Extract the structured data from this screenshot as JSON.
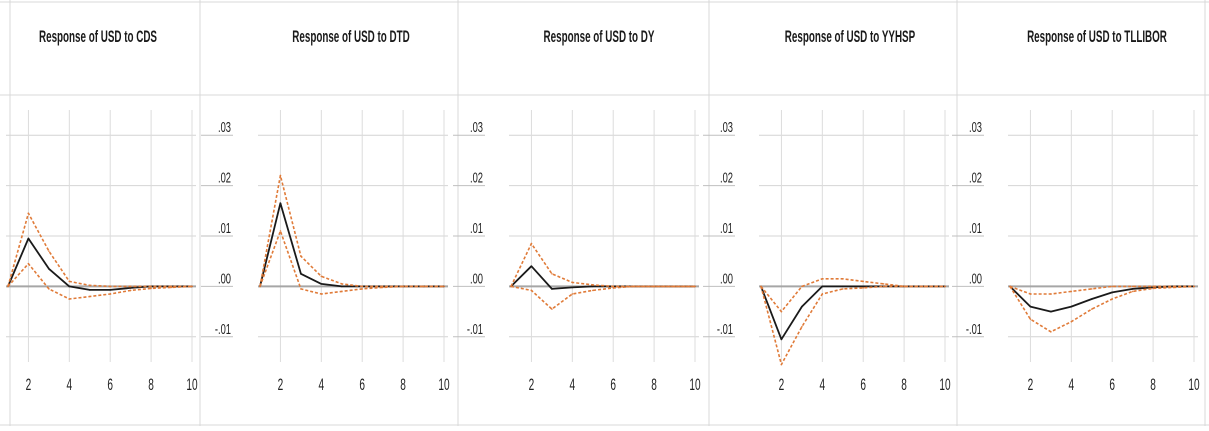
{
  "chart_data": [
    {
      "type": "line",
      "title": "Response of USD to CDS",
      "x": [
        1,
        2,
        3,
        4,
        5,
        6,
        7,
        8,
        9,
        10
      ],
      "xticks": [
        "2",
        "4",
        "6",
        "8",
        "10"
      ],
      "yticks": [],
      "ylim": [
        -0.015,
        0.035
      ],
      "series": [
        {
          "role": "response",
          "color": "#1a1a1a",
          "dash": false,
          "values": [
            0.0,
            0.0095,
            0.0035,
            0.0,
            -0.0007,
            -0.0007,
            -0.0003,
            0.0,
            0.0,
            0.0
          ]
        },
        {
          "role": "upper",
          "color": "#e07b39",
          "dash": true,
          "values": [
            0.0,
            0.0145,
            0.007,
            0.001,
            0.0002,
            0.0,
            0.0,
            0.0,
            0.0,
            0.0
          ]
        },
        {
          "role": "lower",
          "color": "#e07b39",
          "dash": true,
          "values": [
            0.0,
            0.0045,
            -0.0005,
            -0.0025,
            -0.002,
            -0.0015,
            -0.0008,
            -0.0004,
            -0.0002,
            0.0
          ]
        }
      ]
    },
    {
      "type": "line",
      "title": "Response of USD to DTD",
      "x": [
        1,
        2,
        3,
        4,
        5,
        6,
        7,
        8,
        9,
        10
      ],
      "xticks": [
        "2",
        "4",
        "6",
        "8",
        "10"
      ],
      "yticks": [
        ".03",
        ".02",
        ".01",
        ".00",
        "-.01"
      ],
      "ylim": [
        -0.015,
        0.035
      ],
      "series": [
        {
          "role": "response",
          "color": "#1a1a1a",
          "dash": false,
          "values": [
            0.0,
            0.0165,
            0.0025,
            0.0005,
            0.0,
            0.0,
            0.0,
            0.0,
            0.0,
            0.0
          ]
        },
        {
          "role": "upper",
          "color": "#e07b39",
          "dash": true,
          "values": [
            0.0,
            0.022,
            0.006,
            0.002,
            0.0005,
            0.0,
            0.0,
            0.0,
            0.0,
            0.0
          ]
        },
        {
          "role": "lower",
          "color": "#e07b39",
          "dash": true,
          "values": [
            0.0,
            0.011,
            -0.0005,
            -0.0015,
            -0.001,
            -0.0005,
            -0.0002,
            0.0,
            0.0,
            0.0
          ]
        }
      ]
    },
    {
      "type": "line",
      "title": "Response of USD to DY",
      "x": [
        1,
        2,
        3,
        4,
        5,
        6,
        7,
        8,
        9,
        10
      ],
      "xticks": [
        "2",
        "4",
        "6",
        "8",
        "10"
      ],
      "yticks": [
        ".03",
        ".02",
        ".01",
        ".00",
        "-.01"
      ],
      "ylim": [
        -0.015,
        0.035
      ],
      "series": [
        {
          "role": "response",
          "color": "#1a1a1a",
          "dash": false,
          "values": [
            0.0,
            0.004,
            -0.0005,
            -0.0002,
            0.0,
            0.0,
            0.0,
            0.0,
            0.0,
            0.0
          ]
        },
        {
          "role": "upper",
          "color": "#e07b39",
          "dash": true,
          "values": [
            0.0,
            0.0085,
            0.0025,
            0.0008,
            0.0003,
            0.0,
            0.0,
            0.0,
            0.0,
            0.0
          ]
        },
        {
          "role": "lower",
          "color": "#e07b39",
          "dash": true,
          "values": [
            0.0,
            -0.0008,
            -0.0045,
            -0.0015,
            -0.0008,
            -0.0003,
            0.0,
            0.0,
            0.0,
            0.0
          ]
        }
      ]
    },
    {
      "type": "line",
      "title": "Response of USD to YYHSP",
      "x": [
        1,
        2,
        3,
        4,
        5,
        6,
        7,
        8,
        9,
        10
      ],
      "xticks": [
        "2",
        "4",
        "6",
        "8",
        "10"
      ],
      "yticks": [
        ".03",
        ".02",
        ".01",
        ".00",
        "-.01"
      ],
      "ylim": [
        -0.015,
        0.035
      ],
      "series": [
        {
          "role": "response",
          "color": "#1a1a1a",
          "dash": false,
          "values": [
            0.0,
            -0.0105,
            -0.004,
            0.0,
            0.0,
            0.0,
            0.0,
            0.0,
            0.0,
            0.0
          ]
        },
        {
          "role": "upper",
          "color": "#e07b39",
          "dash": true,
          "values": [
            0.0,
            -0.005,
            0.0,
            0.0015,
            0.0015,
            0.001,
            0.0005,
            0.0,
            0.0,
            0.0
          ]
        },
        {
          "role": "lower",
          "color": "#e07b39",
          "dash": true,
          "values": [
            0.0,
            -0.0155,
            -0.008,
            -0.0015,
            -0.0005,
            -0.0003,
            0.0,
            0.0,
            0.0,
            0.0
          ]
        }
      ]
    },
    {
      "type": "line",
      "title": "Response of USD to TLLIBOR",
      "x": [
        1,
        2,
        3,
        4,
        5,
        6,
        7,
        8,
        9,
        10
      ],
      "xticks": [
        "2",
        "4",
        "6",
        "8",
        "10"
      ],
      "yticks": [
        ".03",
        ".02",
        ".01",
        ".00",
        "-.01"
      ],
      "ylim": [
        -0.015,
        0.035
      ],
      "series": [
        {
          "role": "response",
          "color": "#1a1a1a",
          "dash": false,
          "values": [
            0.0,
            -0.004,
            -0.005,
            -0.004,
            -0.0025,
            -0.0012,
            -0.0005,
            -0.0002,
            0.0,
            0.0
          ]
        },
        {
          "role": "upper",
          "color": "#e07b39",
          "dash": true,
          "values": [
            0.0,
            -0.0015,
            -0.0015,
            -0.001,
            -0.0005,
            0.0,
            0.0,
            0.0,
            0.0,
            0.0
          ]
        },
        {
          "role": "lower",
          "color": "#e07b39",
          "dash": true,
          "values": [
            0.0,
            -0.0065,
            -0.009,
            -0.007,
            -0.0045,
            -0.0025,
            -0.001,
            -0.0004,
            -0.0002,
            0.0
          ]
        }
      ]
    }
  ]
}
